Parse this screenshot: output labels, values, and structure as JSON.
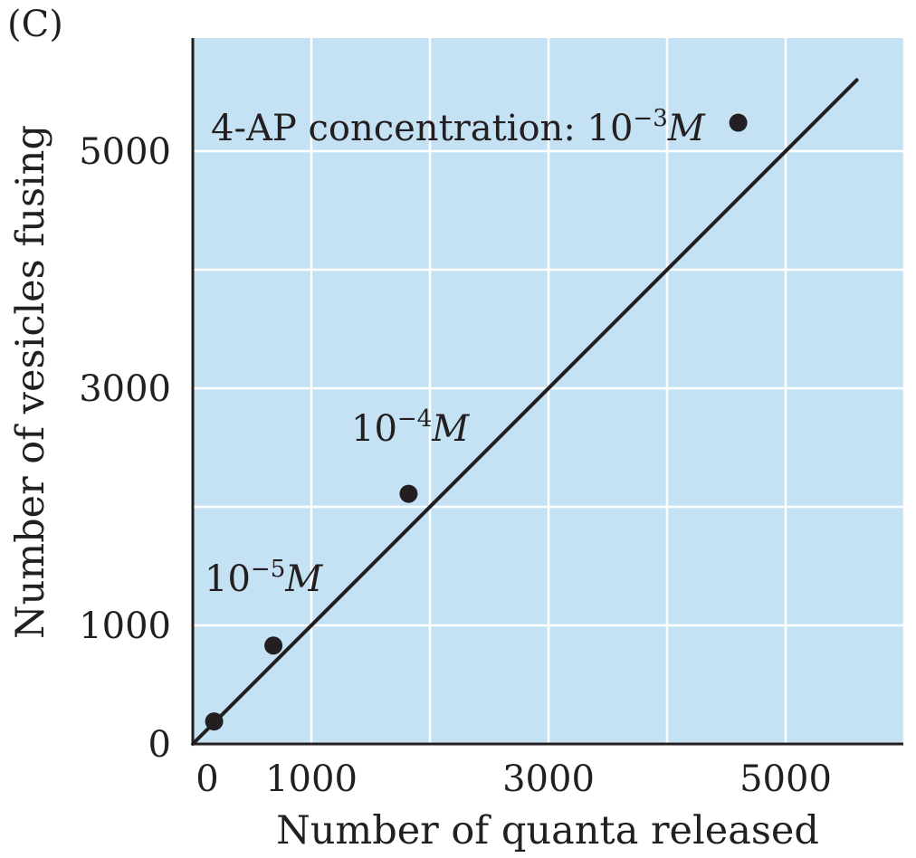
{
  "chart_data": {
    "panel_label": "(C)",
    "type": "scatter",
    "xlabel": "Number of quanta released",
    "ylabel": "Number of vesicles fusing",
    "xlim": [
      0,
      6000
    ],
    "ylim": [
      0,
      6000
    ],
    "grid": true,
    "xticks": [
      0,
      1000,
      3000,
      5000
    ],
    "xtick_labels": [
      "0",
      "1000",
      "3000",
      "5000"
    ],
    "yticks": [
      0,
      1000,
      3000,
      5000
    ],
    "ytick_labels": [
      "0",
      "1000",
      "3000",
      "5000"
    ],
    "points": [
      {
        "x": 180,
        "y": 190,
        "label": ""
      },
      {
        "x": 680,
        "y": 830,
        "label": "10−5M"
      },
      {
        "x": 1820,
        "y": 2110,
        "label": "10−4M"
      },
      {
        "x": 4600,
        "y": 5240,
        "label": "4-AP concentration: 10−3M"
      }
    ],
    "fit_line": {
      "x": [
        0,
        5600
      ],
      "y": [
        0,
        5600
      ]
    },
    "annotations": [
      {
        "id": "ann3",
        "prefix": "4-AP concentration: 10",
        "exponent": "−3",
        "unit": "M"
      },
      {
        "id": "ann4",
        "prefix": "10",
        "exponent": "−4",
        "unit": "M"
      },
      {
        "id": "ann5",
        "prefix": "10",
        "exponent": "−5",
        "unit": "M"
      }
    ],
    "colors": {
      "plot_bg": "#c5e2f5",
      "grid": "#ffffff",
      "ink": "#231f20"
    }
  }
}
